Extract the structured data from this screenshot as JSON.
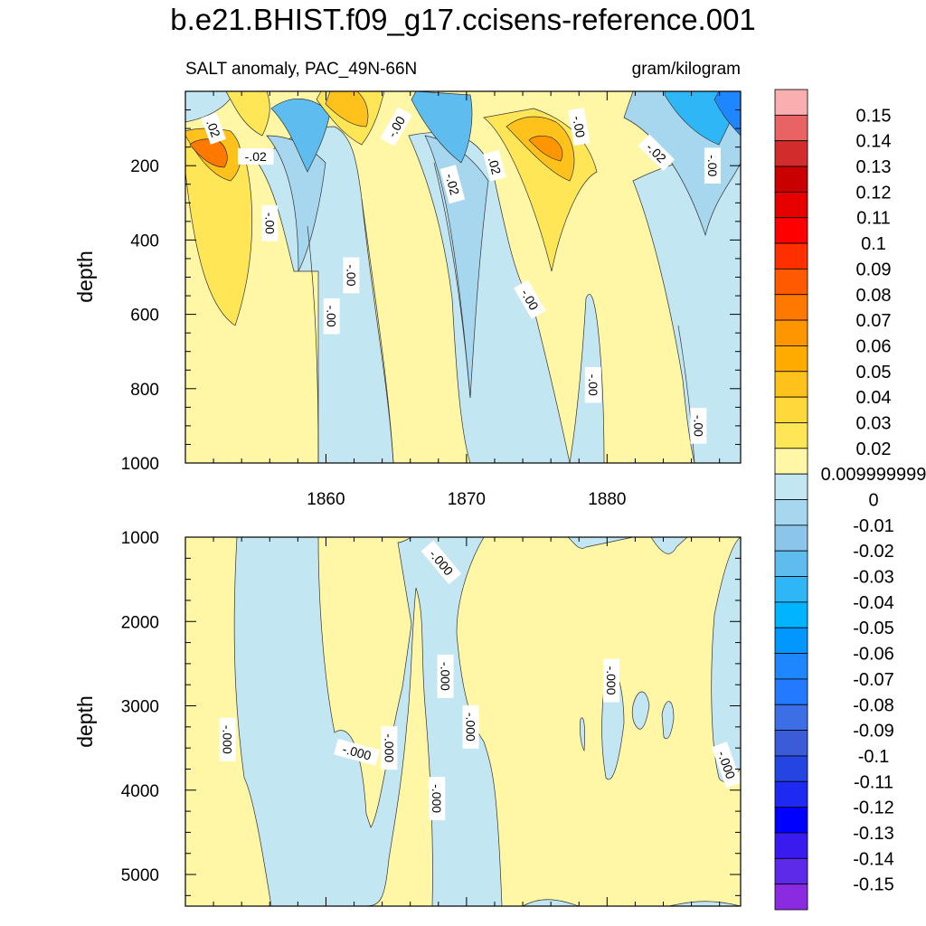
{
  "title": "b.e21.BHIST.f09_g17.ccisens-reference.001",
  "chart_data": {
    "type": "heatmap",
    "variable": "SALT anomaly, PAC_49N-66N",
    "units": "gram/kilogram",
    "xlabel": "",
    "xlim": [
      1850,
      1889.5
    ],
    "xticks": [
      1860,
      1870,
      1880
    ],
    "panels": [
      {
        "name": "upper",
        "ylabel": "depth",
        "ylim": [
          0,
          1000
        ],
        "yticks": [
          200,
          400,
          600,
          800,
          1000
        ],
        "contour_labels": [
          {
            "text": ".02",
            "x": 1852,
            "y": 100,
            "rot": 70
          },
          {
            "text": "-.02",
            "x": 1855,
            "y": 175,
            "rot": 0
          },
          {
            "text": "-.00",
            "x": 1856,
            "y": 355,
            "rot": 90
          },
          {
            "text": "-.00",
            "x": 1865,
            "y": 95,
            "rot": -60
          },
          {
            "text": "-.00",
            "x": 1861.8,
            "y": 495,
            "rot": 90
          },
          {
            "text": "-.00",
            "x": 1860.4,
            "y": 605,
            "rot": 90
          },
          {
            "text": "-.02",
            "x": 1869,
            "y": 250,
            "rot": 75
          },
          {
            "text": ".02",
            "x": 1872,
            "y": 200,
            "rot": 75
          },
          {
            "text": "-.00",
            "x": 1874.5,
            "y": 560,
            "rot": 60
          },
          {
            "text": "-.00",
            "x": 1878,
            "y": 95,
            "rot": 80
          },
          {
            "text": "-.02",
            "x": 1883.5,
            "y": 165,
            "rot": 45
          },
          {
            "text": "-.00",
            "x": 1887.5,
            "y": 200,
            "rot": 90
          },
          {
            "text": "-.00",
            "x": 1879,
            "y": 790,
            "rot": 90
          },
          {
            "text": "-.00",
            "x": 1886.5,
            "y": 900,
            "rot": 90
          }
        ]
      },
      {
        "name": "lower",
        "ylabel": "depth",
        "ylim": [
          1000,
          5375
        ],
        "yticks": [
          1000,
          2000,
          3000,
          4000,
          5000
        ],
        "contour_labels": [
          {
            "text": "-.000",
            "x": 1853,
            "y": 3400,
            "rot": 90
          },
          {
            "text": "-.000",
            "x": 1862.2,
            "y": 3550,
            "rot": 15
          },
          {
            "text": "-.000",
            "x": 1864.5,
            "y": 3500,
            "rot": 90
          },
          {
            "text": "-.000",
            "x": 1868.2,
            "y": 1300,
            "rot": 50
          },
          {
            "text": "-.000",
            "x": 1868.5,
            "y": 2650,
            "rot": 90
          },
          {
            "text": "-.000",
            "x": 1870.3,
            "y": 3250,
            "rot": 90
          },
          {
            "text": "-.000",
            "x": 1867.9,
            "y": 4100,
            "rot": 90
          },
          {
            "text": "-.000",
            "x": 1880.3,
            "y": 2700,
            "rot": 90
          },
          {
            "text": "-.000",
            "x": 1888.5,
            "y": 3700,
            "rot": 70
          }
        ]
      }
    ],
    "colorbar": {
      "levels": [
        "0.15",
        "0.14",
        "0.13",
        "0.12",
        "0.11",
        "0.1",
        "0.09",
        "0.08",
        "0.07",
        "0.06",
        "0.05",
        "0.04",
        "0.03",
        "0.02",
        "0.009999999",
        "0",
        "-0.01",
        "-0.02",
        "-0.03",
        "-0.04",
        "-0.05",
        "-0.06",
        "-0.07",
        "-0.08",
        "-0.09",
        "-0.1",
        "-0.11",
        "-0.12",
        "-0.13",
        "-0.14",
        "-0.15"
      ],
      "colors": [
        "#F9AFAF",
        "#E86464",
        "#D22C2C",
        "#C80000",
        "#E60000",
        "#FF0000",
        "#FF2F00",
        "#FF5A00",
        "#FF7800",
        "#FF9600",
        "#FFAB00",
        "#FFC21D",
        "#FFD83B",
        "#FFE657",
        "#FFF6A6",
        "#C3E6F3",
        "#A7D7EE",
        "#8BC5EA",
        "#5FBCEF",
        "#2EB6F6",
        "#00B4FF",
        "#0097FF",
        "#1E87FF",
        "#247AFF",
        "#3C6EE6",
        "#3A5CD8",
        "#2545E3",
        "#1E2AF2",
        "#0000FF",
        "#3A1BEF",
        "#5C2AE8",
        "#8A2BE2"
      ]
    }
  }
}
